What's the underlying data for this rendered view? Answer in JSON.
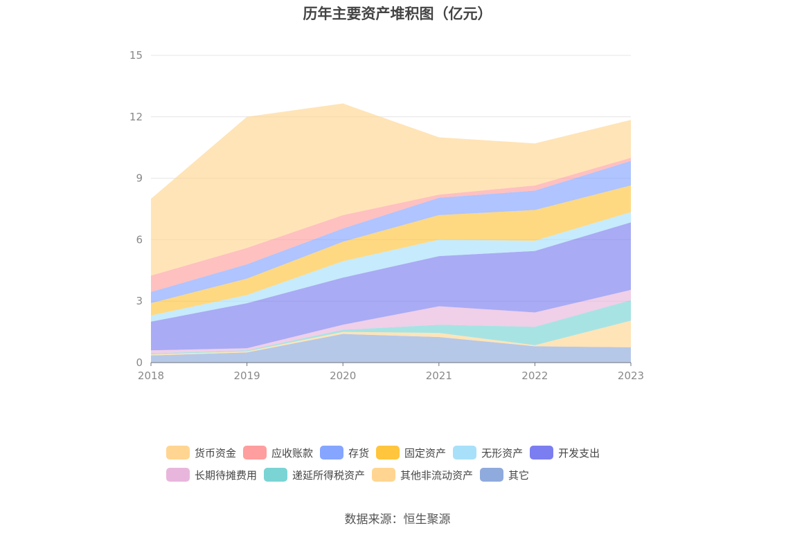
{
  "chart_data": {
    "type": "area",
    "stacked": true,
    "title": "历年主要资产堆积图（亿元）",
    "xlabel": "",
    "ylabel": "",
    "categories": [
      "2018",
      "2019",
      "2020",
      "2021",
      "2022",
      "2023"
    ],
    "ylim": [
      0,
      15
    ],
    "yticks": [
      "0",
      "3",
      "6",
      "9",
      "12",
      "15"
    ],
    "grid": true,
    "legend_position": "bottom",
    "series": [
      {
        "name": "其它",
        "color": "#8faadc",
        "values": [
          0.35,
          0.5,
          1.4,
          1.25,
          0.8,
          0.75
        ]
      },
      {
        "name": "其他非流动资产",
        "color": "#ffd591",
        "values": [
          0.05,
          0.05,
          0.1,
          0.2,
          0.05,
          1.3
        ]
      },
      {
        "name": "递延所得税资产",
        "color": "#7ad4d4",
        "values": [
          0.05,
          0.05,
          0.1,
          0.4,
          0.9,
          1.0
        ]
      },
      {
        "name": "长期待摊费用",
        "color": "#e8b6dc",
        "values": [
          0.15,
          0.1,
          0.25,
          0.9,
          0.7,
          0.5
        ]
      },
      {
        "name": "开发支出",
        "color": "#7b7ef0",
        "values": [
          1.4,
          2.2,
          2.3,
          2.45,
          3.0,
          3.3
        ]
      },
      {
        "name": "无形资产",
        "color": "#a8e0fa",
        "values": [
          0.3,
          0.4,
          0.8,
          0.8,
          0.5,
          0.5
        ]
      },
      {
        "name": "固定资产",
        "color": "#ffc53d",
        "values": [
          0.6,
          0.8,
          0.95,
          1.2,
          1.5,
          1.3
        ]
      },
      {
        "name": "存货",
        "color": "#85a5ff",
        "values": [
          0.55,
          0.7,
          0.65,
          0.85,
          0.95,
          1.2
        ]
      },
      {
        "name": "应收账款",
        "color": "#ff9e9e",
        "values": [
          0.8,
          0.8,
          0.65,
          0.15,
          0.25,
          0.15
        ]
      },
      {
        "name": "货币资金",
        "color": "#ffd591",
        "values": [
          3.75,
          6.4,
          5.45,
          2.8,
          2.05,
          1.85
        ]
      }
    ],
    "legend_order": [
      "货币资金",
      "应收账款",
      "存货",
      "固定资产",
      "无形资产",
      "开发支出",
      "长期待摊费用",
      "递延所得税资产",
      "其他非流动资产",
      "其它"
    ]
  },
  "source_text": "数据来源：恒生聚源"
}
